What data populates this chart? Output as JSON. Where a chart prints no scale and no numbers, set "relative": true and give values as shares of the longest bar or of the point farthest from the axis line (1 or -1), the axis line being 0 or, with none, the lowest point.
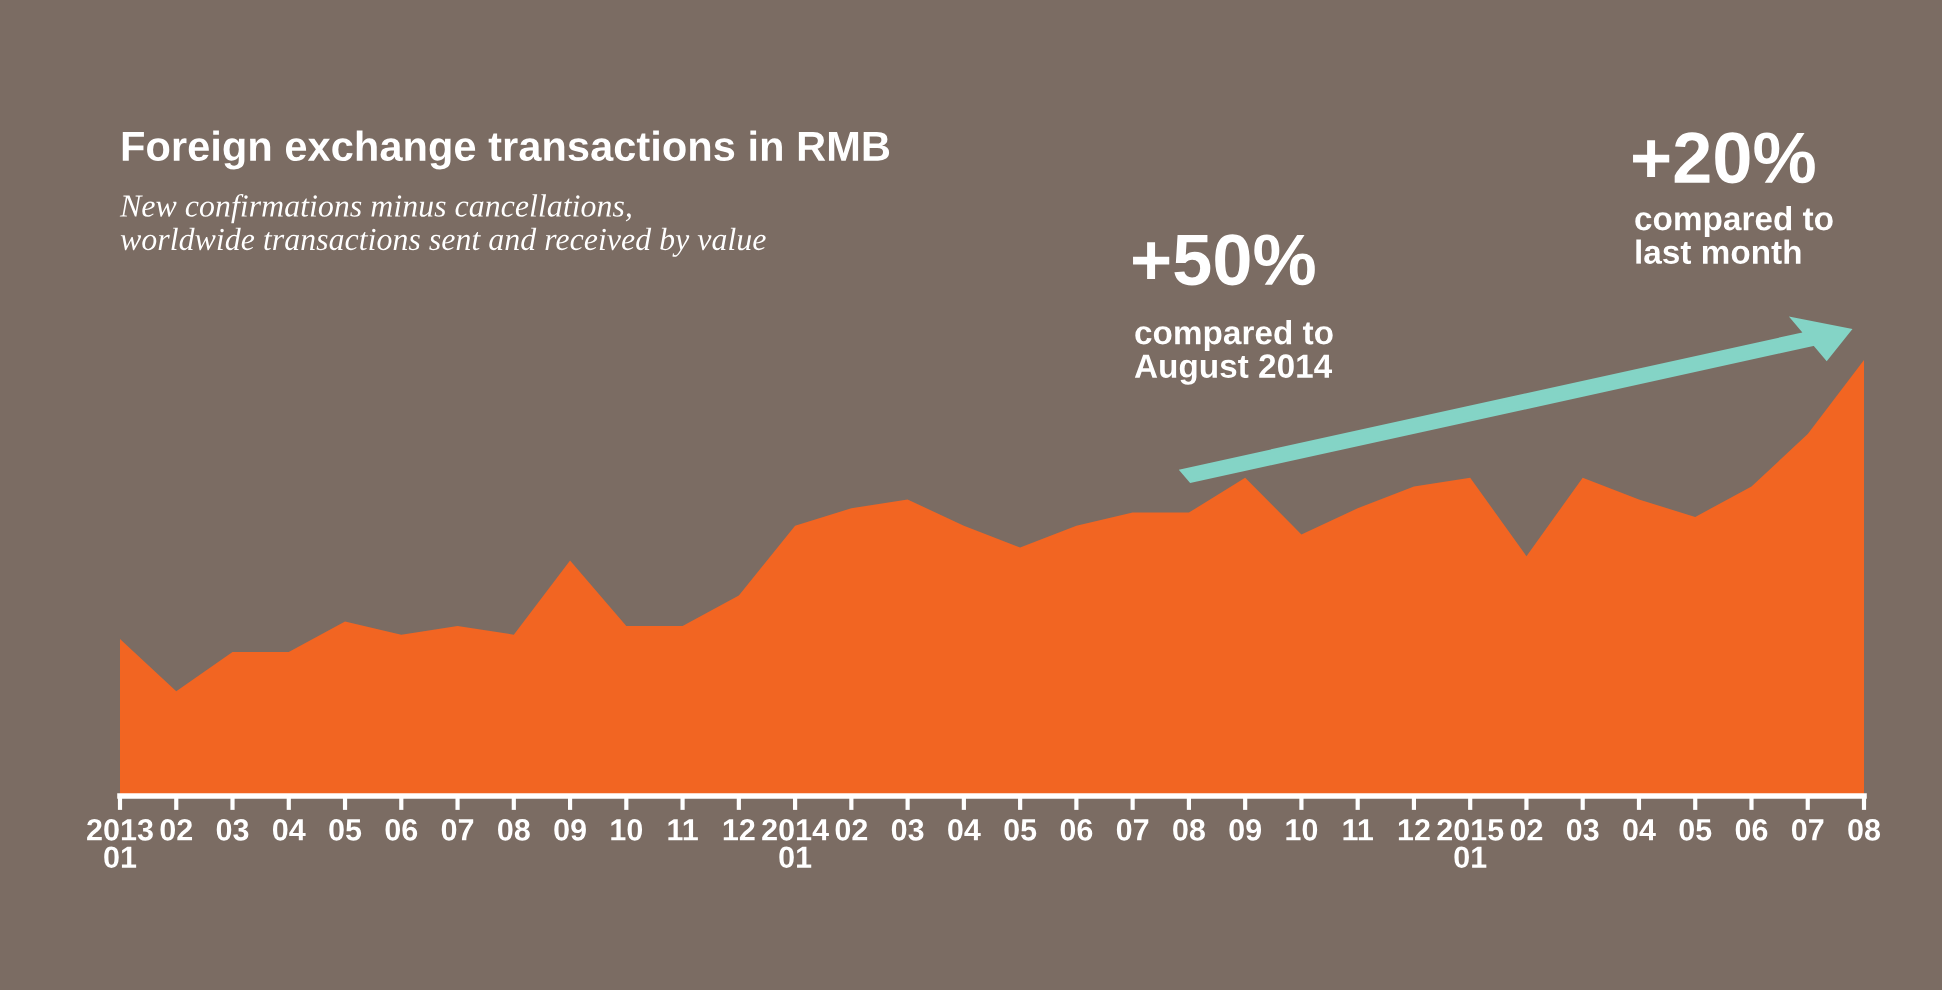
{
  "chart_data": {
    "type": "area",
    "title": "Foreign exchange transactions in RMB",
    "subtitle": "New confirmations minus cancellations,\nworldwide transactions sent and received by value",
    "categories": [
      "2013\n01",
      "02",
      "03",
      "04",
      "05",
      "06",
      "07",
      "08",
      "09",
      "10",
      "11",
      "12",
      "2014\n01",
      "02",
      "03",
      "04",
      "05",
      "06",
      "07",
      "08",
      "09",
      "10",
      "11",
      "12",
      "2015\n01",
      "02",
      "03",
      "04",
      "05",
      "06",
      "07",
      "08"
    ],
    "relative": true,
    "series": [
      {
        "color": "#f26522",
        "values": [
          0.36,
          0.24,
          0.33,
          0.33,
          0.4,
          0.37,
          0.39,
          0.37,
          0.54,
          0.39,
          0.39,
          0.46,
          0.62,
          0.66,
          0.68,
          0.62,
          0.57,
          0.62,
          0.65,
          0.65,
          0.73,
          0.6,
          0.66,
          0.71,
          0.73,
          0.55,
          0.73,
          0.68,
          0.64,
          0.71,
          0.83,
          1.0
        ]
      }
    ],
    "annotations": [
      "+50%",
      "compared to\nAugust 2014",
      "+20%",
      "compared to\nlast month"
    ],
    "grid": false,
    "legend": false
  }
}
